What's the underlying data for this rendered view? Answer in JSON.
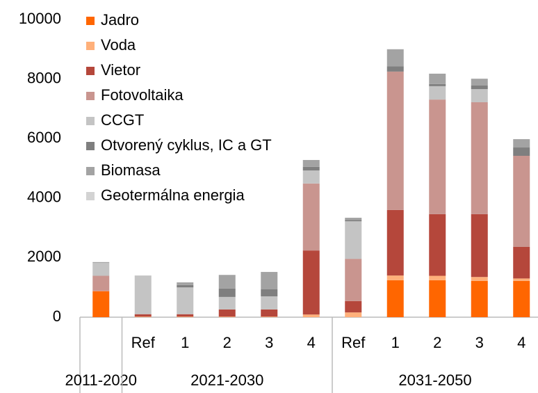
{
  "chart_data": {
    "type": "stacked_bar",
    "categories": [
      null,
      "Ref",
      "1",
      "2",
      "3",
      "4",
      "Ref",
      "1",
      "2",
      "3",
      "4"
    ],
    "groups": [
      {
        "label": "2011-2020",
        "span": 1
      },
      {
        "label": "2021-2030",
        "span": 5
      },
      {
        "label": "2031-2050",
        "span": 5
      }
    ],
    "series": [
      {
        "name": "Jadro",
        "color": "#ff6600",
        "values": [
          870,
          0,
          0,
          0,
          0,
          0,
          0,
          1240,
          1240,
          1220,
          1220
        ]
      },
      {
        "name": "Voda",
        "color": "#ffb07a",
        "values": [
          10,
          20,
          20,
          20,
          20,
          90,
          160,
          160,
          150,
          130,
          80
        ]
      },
      {
        "name": "Vietor",
        "color": "#b5473b",
        "values": [
          10,
          80,
          80,
          240,
          240,
          2150,
          380,
          2200,
          2070,
          2110,
          1060
        ]
      },
      {
        "name": "Fotovoltaika",
        "color": "#c9958f",
        "values": [
          500,
          0,
          0,
          0,
          0,
          2250,
          1420,
          4650,
          3850,
          3760,
          3060
        ]
      },
      {
        "name": "CCGT",
        "color": "#c4c4c4",
        "values": [
          430,
          1300,
          900,
          420,
          440,
          440,
          1260,
          0,
          450,
          440,
          0
        ]
      },
      {
        "name": "Otvorený cyklus, IC a GT",
        "color": "#7f7f7f",
        "values": [
          0,
          0,
          80,
          280,
          235,
          120,
          40,
          180,
          70,
          120,
          280
        ]
      },
      {
        "name": "Biomasa",
        "color": "#a3a3a3",
        "values": [
          30,
          0,
          90,
          460,
          585,
          230,
          80,
          570,
          350,
          230,
          280
        ]
      },
      {
        "name": "Geotermálna energia",
        "color": "#d3d3d3",
        "values": [
          0,
          0,
          0,
          0,
          0,
          0,
          0,
          0,
          0,
          0,
          0
        ]
      }
    ],
    "ylim": [
      0,
      10000
    ],
    "yticks": [
      0,
      2000,
      4000,
      6000,
      8000,
      10000
    ],
    "grid": false,
    "legend": "upper left"
  }
}
